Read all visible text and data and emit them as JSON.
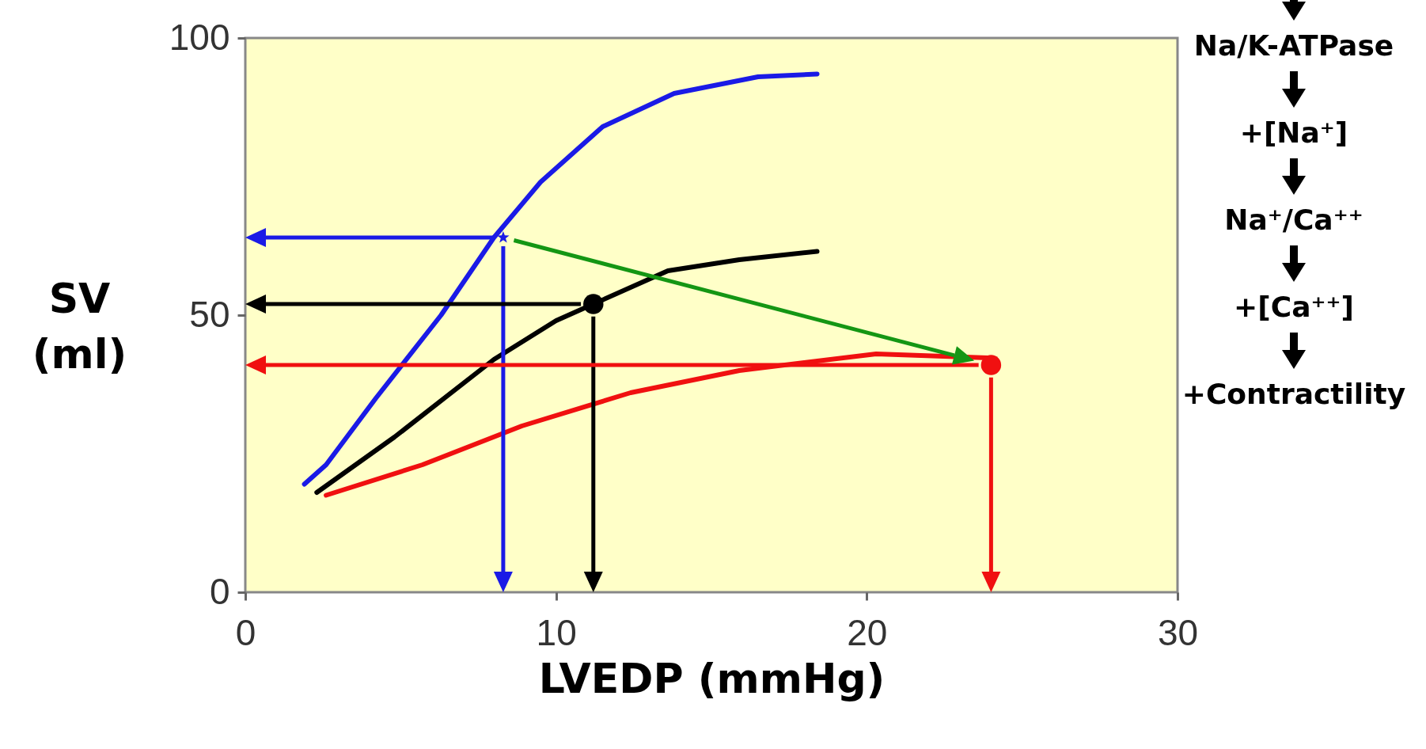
{
  "chart_data": {
    "type": "line",
    "xlabel": "LVEDP (mmHg)",
    "ylabel": "SV (ml)",
    "xlim": [
      0,
      30
    ],
    "ylim": [
      0,
      100
    ],
    "xticks": [
      0,
      10,
      20,
      30
    ],
    "yticks": [
      0,
      50,
      100
    ],
    "grid": false,
    "legend": false,
    "annotations": [
      "Na/K-ATPase",
      "+[Na⁺]",
      "Na⁺/Ca⁺⁺",
      "+[Ca⁺⁺]",
      "+Contractility"
    ],
    "series": [
      {
        "color": "#1a1ae6",
        "x": [
          1.9,
          2.6,
          4.2,
          6.3,
          8.0,
          9.5,
          11.5,
          13.8,
          16.5,
          18.4
        ],
        "values": [
          19.5,
          23,
          35,
          50,
          64,
          74,
          84,
          90,
          93,
          93.5
        ]
      },
      {
        "color": "#000000",
        "x": [
          2.3,
          4.8,
          8.0,
          10,
          11.2,
          13.6,
          15.9,
          18.4
        ],
        "values": [
          18,
          28,
          42,
          49,
          52,
          58,
          60,
          61.5
        ]
      },
      {
        "color": "#f01010",
        "x": [
          2.6,
          5.7,
          8.9,
          12.4,
          15.9,
          20.3,
          23.9
        ],
        "values": [
          17.5,
          23,
          30,
          36,
          40,
          43,
          42.3
        ]
      },
      {
        "type": "scatter",
        "color": "#1a1ae6",
        "x": [
          8.3
        ],
        "values": [
          64
        ],
        "marker": "star"
      },
      {
        "type": "scatter",
        "color": "#000000",
        "x": [
          11.2
        ],
        "values": [
          52
        ],
        "marker": "circle"
      },
      {
        "type": "scatter",
        "color": "#f01010",
        "x": [
          24
        ],
        "values": [
          41
        ],
        "marker": "circle"
      }
    ]
  }
}
